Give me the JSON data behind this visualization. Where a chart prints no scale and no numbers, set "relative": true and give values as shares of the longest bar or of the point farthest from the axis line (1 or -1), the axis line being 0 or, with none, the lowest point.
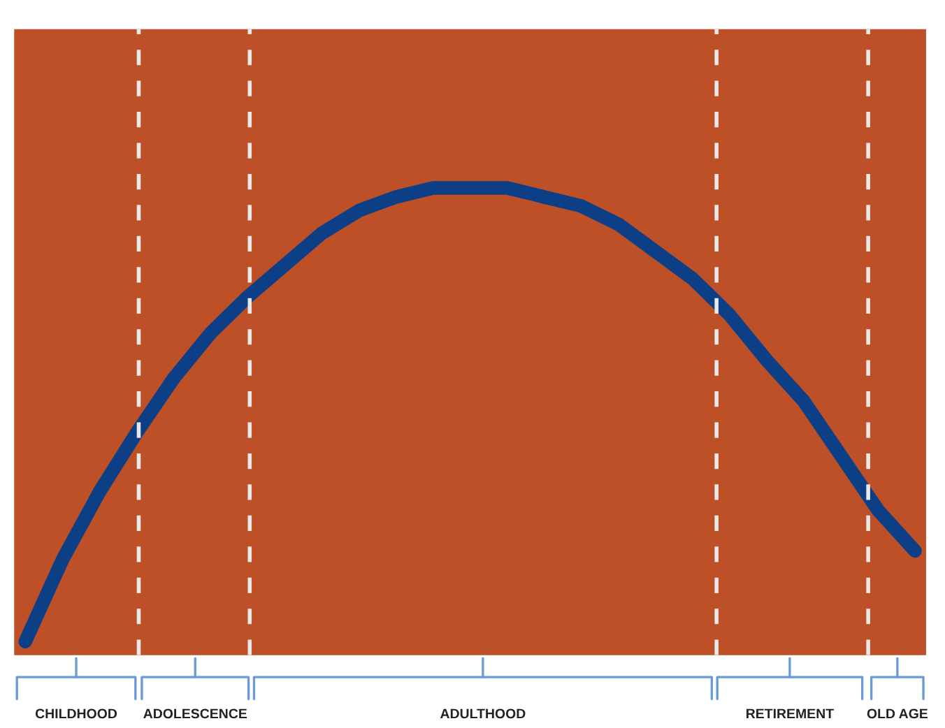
{
  "chart_data": {
    "type": "line",
    "relative": true,
    "legend": false,
    "categories": [
      null,
      null,
      null,
      null,
      null,
      null,
      null,
      null,
      null,
      null,
      null,
      null,
      null,
      null,
      null,
      null,
      null,
      null,
      null,
      null,
      null,
      null,
      null,
      null,
      null
    ],
    "series": [
      {
        "color": "#0d3f87",
        "values": [
          0,
          0.18,
          0.33,
          0.46,
          0.58,
          0.68,
          0.76,
          0.83,
          0.9,
          0.95,
          0.98,
          1,
          1,
          1,
          0.98,
          0.96,
          0.92,
          0.86,
          0.8,
          0.72,
          0.62,
          0.53,
          0.41,
          0.29,
          0.2
        ]
      }
    ],
    "line_style": "solid",
    "annotations": [
      "CHILDHOOD",
      "ADOLESCENCE",
      "ADULTHOOD",
      "RETIREMENT",
      "OLD AGE"
    ]
  }
}
